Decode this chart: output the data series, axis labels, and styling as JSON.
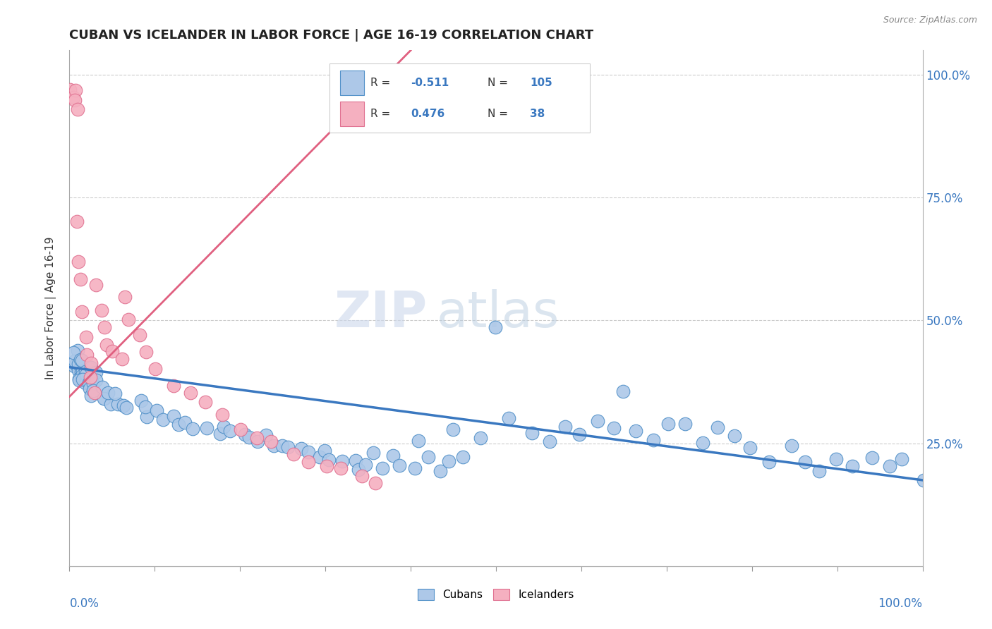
{
  "title": "CUBAN VS ICELANDER IN LABOR FORCE | AGE 16-19 CORRELATION CHART",
  "source": "Source: ZipAtlas.com",
  "ylabel": "In Labor Force | Age 16-19",
  "xlim": [
    0.0,
    1.0
  ],
  "ylim": [
    0.0,
    1.05
  ],
  "blue_R": -0.511,
  "blue_N": 105,
  "pink_R": 0.476,
  "pink_N": 38,
  "blue_color": "#adc8e8",
  "blue_edge_color": "#5090c8",
  "blue_line_color": "#3a78c0",
  "pink_color": "#f5b0c0",
  "pink_edge_color": "#e07090",
  "pink_line_color": "#e06080",
  "legend_label_blue": "Cubans",
  "legend_label_pink": "Icelanders",
  "watermark_zip": "ZIP",
  "watermark_atlas": "atlas",
  "background_color": "#ffffff",
  "blue_line_x0": 0.0,
  "blue_line_x1": 1.0,
  "blue_line_y0": 0.405,
  "blue_line_y1": 0.175,
  "pink_line_x0": 0.0,
  "pink_line_x1": 0.4,
  "pink_line_y0": 0.345,
  "pink_line_y1": 1.05,
  "blue_pts_x": [
    0.005,
    0.007,
    0.008,
    0.008,
    0.009,
    0.01,
    0.01,
    0.01,
    0.012,
    0.012,
    0.013,
    0.013,
    0.014,
    0.015,
    0.015,
    0.016,
    0.017,
    0.018,
    0.019,
    0.02,
    0.02,
    0.022,
    0.025,
    0.025,
    0.028,
    0.03,
    0.032,
    0.035,
    0.038,
    0.04,
    0.042,
    0.045,
    0.05,
    0.055,
    0.06,
    0.065,
    0.07,
    0.08,
    0.085,
    0.09,
    0.1,
    0.11,
    0.12,
    0.13,
    0.14,
    0.15,
    0.16,
    0.17,
    0.18,
    0.19,
    0.2,
    0.21,
    0.22,
    0.23,
    0.24,
    0.25,
    0.26,
    0.27,
    0.28,
    0.29,
    0.3,
    0.31,
    0.32,
    0.33,
    0.34,
    0.35,
    0.36,
    0.37,
    0.38,
    0.39,
    0.4,
    0.41,
    0.42,
    0.43,
    0.44,
    0.45,
    0.46,
    0.48,
    0.5,
    0.52,
    0.54,
    0.56,
    0.58,
    0.6,
    0.62,
    0.64,
    0.65,
    0.66,
    0.68,
    0.7,
    0.72,
    0.74,
    0.76,
    0.78,
    0.8,
    0.82,
    0.84,
    0.86,
    0.88,
    0.9,
    0.92,
    0.94,
    0.96,
    0.98,
    1.0
  ],
  "blue_pts_y": [
    0.42,
    0.4,
    0.41,
    0.43,
    0.42,
    0.4,
    0.41,
    0.43,
    0.39,
    0.4,
    0.38,
    0.42,
    0.4,
    0.39,
    0.41,
    0.38,
    0.4,
    0.37,
    0.39,
    0.38,
    0.4,
    0.37,
    0.36,
    0.39,
    0.37,
    0.35,
    0.38,
    0.36,
    0.34,
    0.37,
    0.35,
    0.33,
    0.36,
    0.34,
    0.35,
    0.33,
    0.32,
    0.34,
    0.31,
    0.33,
    0.32,
    0.3,
    0.31,
    0.29,
    0.3,
    0.28,
    0.29,
    0.27,
    0.28,
    0.27,
    0.26,
    0.27,
    0.25,
    0.26,
    0.24,
    0.25,
    0.24,
    0.23,
    0.24,
    0.22,
    0.23,
    0.22,
    0.21,
    0.22,
    0.2,
    0.21,
    0.23,
    0.2,
    0.22,
    0.21,
    0.2,
    0.25,
    0.22,
    0.2,
    0.21,
    0.28,
    0.22,
    0.26,
    0.48,
    0.3,
    0.28,
    0.26,
    0.28,
    0.27,
    0.29,
    0.28,
    0.36,
    0.27,
    0.26,
    0.3,
    0.28,
    0.26,
    0.28,
    0.26,
    0.24,
    0.22,
    0.24,
    0.22,
    0.2,
    0.22,
    0.2,
    0.22,
    0.2,
    0.22,
    0.175
  ],
  "pink_pts_x": [
    0.003,
    0.005,
    0.006,
    0.007,
    0.009,
    0.01,
    0.012,
    0.013,
    0.015,
    0.018,
    0.02,
    0.022,
    0.025,
    0.03,
    0.033,
    0.038,
    0.04,
    0.045,
    0.05,
    0.06,
    0.065,
    0.07,
    0.08,
    0.09,
    0.1,
    0.12,
    0.14,
    0.16,
    0.18,
    0.2,
    0.22,
    0.24,
    0.26,
    0.28,
    0.3,
    0.32,
    0.34,
    0.36
  ],
  "pink_pts_y": [
    0.97,
    0.96,
    0.97,
    0.95,
    0.93,
    0.7,
    0.62,
    0.58,
    0.52,
    0.47,
    0.43,
    0.41,
    0.38,
    0.35,
    0.58,
    0.52,
    0.48,
    0.45,
    0.44,
    0.42,
    0.55,
    0.5,
    0.47,
    0.43,
    0.4,
    0.37,
    0.35,
    0.33,
    0.31,
    0.28,
    0.27,
    0.25,
    0.23,
    0.22,
    0.21,
    0.2,
    0.18,
    0.17
  ]
}
